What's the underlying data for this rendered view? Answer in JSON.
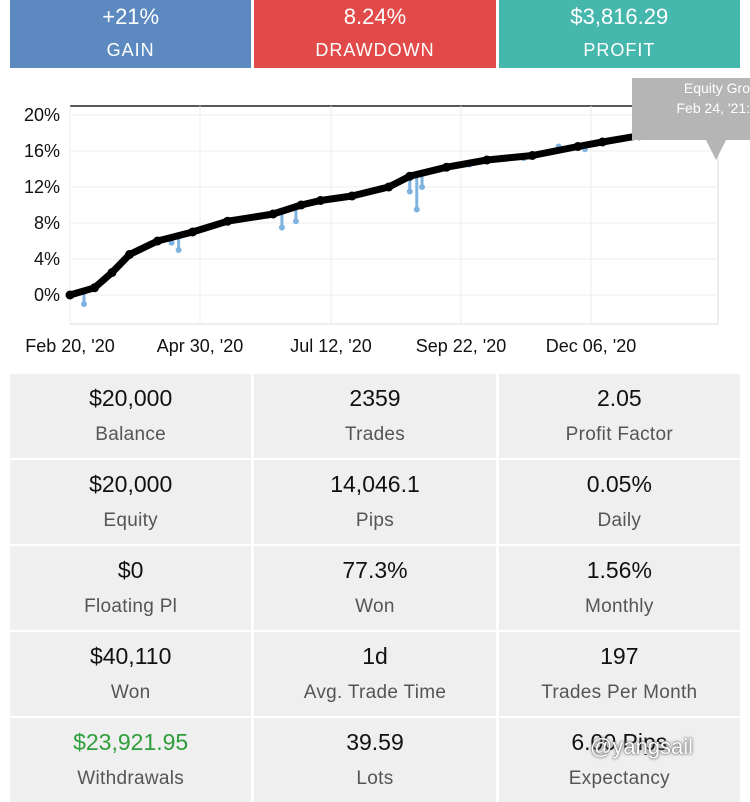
{
  "summary": {
    "gain": {
      "value": "+21%",
      "label": "GAIN",
      "color": "#5b89c0"
    },
    "drawdown": {
      "value": "8.24%",
      "label": "DRAWDOWN",
      "color": "#e24a4a"
    },
    "profit": {
      "value": "$3,816.29",
      "label": "PROFIT",
      "color": "#45b7ad"
    }
  },
  "chart_data": {
    "type": "line",
    "y_ticks": [
      "20%",
      "16%",
      "12%",
      "8%",
      "4%",
      "0%"
    ],
    "x_ticks": [
      "Feb 20, '20",
      "Apr 30, '20",
      "Jul 12, '20",
      "Sep 22, '20",
      "Dec 06, '20"
    ],
    "ylim": [
      0,
      20
    ],
    "grid": true,
    "series": [
      {
        "color": "#000000",
        "x": [
          "2020-02-20",
          "2020-03-05",
          "2020-03-15",
          "2020-03-25",
          "2020-04-10",
          "2020-04-30",
          "2020-05-20",
          "2020-06-15",
          "2020-07-01",
          "2020-07-12",
          "2020-07-30",
          "2020-08-20",
          "2020-09-01",
          "2020-09-22",
          "2020-10-15",
          "2020-11-10",
          "2020-12-06",
          "2020-12-20",
          "2021-01-10",
          "2021-01-25",
          "2021-02-10",
          "2021-02-24"
        ],
        "values": [
          0.0,
          0.8,
          2.5,
          4.5,
          6.0,
          7.0,
          8.2,
          9.0,
          10.0,
          10.5,
          11.0,
          12.0,
          13.2,
          14.2,
          15.0,
          15.5,
          16.5,
          17.0,
          17.7,
          18.4,
          19.2,
          20.0
        ]
      },
      {
        "color": "#7fb3e0",
        "x": [
          "2020-02-28",
          "2020-04-18",
          "2020-04-22",
          "2020-06-12",
          "2020-06-20",
          "2020-06-28",
          "2020-08-10",
          "2020-08-25",
          "2020-09-01",
          "2020-09-05",
          "2020-09-08",
          "2020-10-05",
          "2020-11-05",
          "2020-11-25",
          "2020-12-01",
          "2020-12-10"
        ],
        "values": [
          -1.0,
          5.8,
          5.0,
          8.8,
          7.5,
          8.2,
          11.5,
          12.5,
          11.5,
          9.5,
          12.0,
          14.5,
          15.2,
          16.5,
          16.3,
          16.2
        ]
      }
    ]
  },
  "tooltip": {
    "line1": "Equity Gro",
    "line2": "Feb 24, '21:"
  },
  "stats": [
    {
      "value": "$20,000",
      "label": "Balance"
    },
    {
      "value": "2359",
      "label": "Trades"
    },
    {
      "value": "2.05",
      "label": "Profit Factor"
    },
    {
      "value": "$20,000",
      "label": "Equity"
    },
    {
      "value": "14,046.1",
      "label": "Pips"
    },
    {
      "value": "0.05%",
      "label": "Daily"
    },
    {
      "value": "$0",
      "label": "Floating Pl"
    },
    {
      "value": "77.3%",
      "label": "Won"
    },
    {
      "value": "1.56%",
      "label": "Monthly"
    },
    {
      "value": "$40,110",
      "label": "Won"
    },
    {
      "value": "1d",
      "label": "Avg. Trade Time"
    },
    {
      "value": "197",
      "label": "Trades Per Month"
    },
    {
      "value": "$23,921.95",
      "label": "Withdrawals",
      "color": "#2e9e3a"
    },
    {
      "value": "39.59",
      "label": "Lots"
    },
    {
      "value": "6.00 Pips",
      "label": "Expectancy"
    }
  ],
  "watermark": "@yangsail"
}
